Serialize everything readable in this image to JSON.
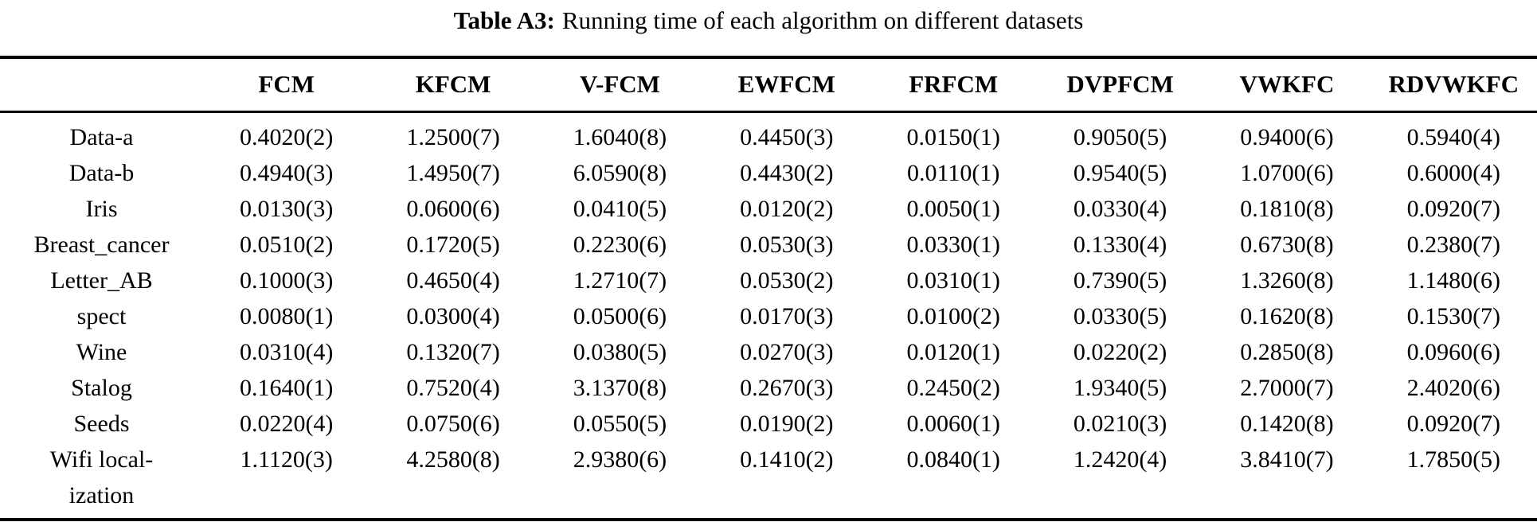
{
  "title": {
    "label": "Table A3:",
    "text": "Running time of each algorithm on different datasets"
  },
  "table": {
    "columns": [
      "FCM",
      "KFCM",
      "V-FCM",
      "EWFCM",
      "FRFCM",
      "DVPFCM",
      "VWKFC",
      "RDVWKFC"
    ],
    "rows": [
      {
        "dataset": "Data-a",
        "values": [
          "0.4020(2)",
          "1.2500(7)",
          "1.6040(8)",
          "0.4450(3)",
          "0.0150(1)",
          "0.9050(5)",
          "0.9400(6)",
          "0.5940(4)"
        ]
      },
      {
        "dataset": "Data-b",
        "values": [
          "0.4940(3)",
          "1.4950(7)",
          "6.0590(8)",
          "0.4430(2)",
          "0.0110(1)",
          "0.9540(5)",
          "1.0700(6)",
          "0.6000(4)"
        ]
      },
      {
        "dataset": "Iris",
        "values": [
          "0.0130(3)",
          "0.0600(6)",
          "0.0410(5)",
          "0.0120(2)",
          "0.0050(1)",
          "0.0330(4)",
          "0.1810(8)",
          "0.0920(7)"
        ]
      },
      {
        "dataset": "Breast_cancer",
        "values": [
          "0.0510(2)",
          "0.1720(5)",
          "0.2230(6)",
          "0.0530(3)",
          "0.0330(1)",
          "0.1330(4)",
          "0.6730(8)",
          "0.2380(7)"
        ]
      },
      {
        "dataset": "Letter_AB",
        "values": [
          "0.1000(3)",
          "0.4650(4)",
          "1.2710(7)",
          "0.0530(2)",
          "0.0310(1)",
          "0.7390(5)",
          "1.3260(8)",
          "1.1480(6)"
        ]
      },
      {
        "dataset": "spect",
        "values": [
          "0.0080(1)",
          "0.0300(4)",
          "0.0500(6)",
          "0.0170(3)",
          "0.0100(2)",
          "0.0330(5)",
          "0.1620(8)",
          "0.1530(7)"
        ]
      },
      {
        "dataset": "Wine",
        "values": [
          "0.0310(4)",
          "0.1320(7)",
          "0.0380(5)",
          "0.0270(3)",
          "0.0120(1)",
          "0.0220(2)",
          "0.2850(8)",
          "0.0960(6)"
        ]
      },
      {
        "dataset": "Stalog",
        "values": [
          "0.1640(1)",
          "0.7520(4)",
          "3.1370(8)",
          "0.2670(3)",
          "0.2450(2)",
          "1.9340(5)",
          "2.7000(7)",
          "2.4020(6)"
        ]
      },
      {
        "dataset": "Seeds",
        "values": [
          "0.0220(4)",
          "0.0750(6)",
          "0.0550(5)",
          "0.0190(2)",
          "0.0060(1)",
          "0.0210(3)",
          "0.1420(8)",
          "0.0920(7)"
        ]
      },
      {
        "dataset": "Wifi local-\nization",
        "values": [
          "1.1120(3)",
          "4.2580(8)",
          "2.9380(6)",
          "0.1410(2)",
          "0.0840(1)",
          "1.2420(4)",
          "3.8410(7)",
          "1.7850(5)"
        ]
      }
    ]
  }
}
